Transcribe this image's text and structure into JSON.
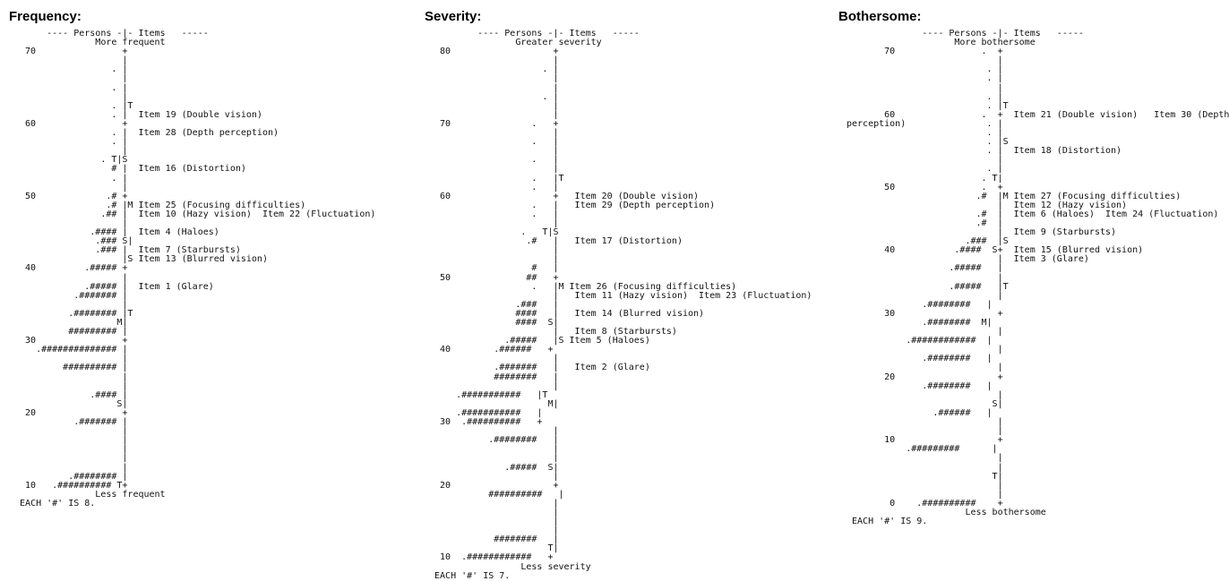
{
  "panels": [
    {
      "title": "Frequency:",
      "map_lines": [
        "      ---- Persons -|- Items   -----",
        "               More frequent",
        "  70                +",
        "                    |",
        "                  . |",
        "                    |",
        "                  . |",
        "                    |",
        "                  . |T",
        "                  . |  Item 19 (Double vision)",
        "  60                +",
        "                  . |  Item 28 (Depth perception)",
        "                  . |",
        "                    |",
        "                . T|S",
        "                  # |  Item 16 (Distortion)",
        "                  . |",
        "                    |",
        "  50             .# +",
        "                 .# |M Item 25 (Focusing difficulties)",
        "                .## |  Item 10 (Hazy vision)  Item 22 (Fluctuation)",
        "                    |",
        "              .#### |  Item 4 (Haloes)",
        "               .### S|",
        "               .### |  Item 7 (Starbursts)",
        "                    |S Item 13 (Blurred vision)",
        "  40         .##### +",
        "                    |",
        "             .##### |  Item 1 (Glare)",
        "           .####### |",
        "                    |",
        "          .######## |T",
        "                   M|",
        "          ######### |",
        "  30                +",
        "    .############## |",
        "                    |",
        "         ########## |",
        "                    |",
        "                    |",
        "              .#### |",
        "                   S|",
        "  20                +",
        "           .####### |",
        "                    |",
        "                    |",
        "                    |",
        "                    |",
        "                    |",
        "          .######## |",
        "  10   .########## T+",
        "               Less frequent",
        " EACH '#' IS 8."
      ]
    },
    {
      "title": "Severity:",
      "map_lines": [
        "         ---- Persons -|- Items   -----",
        "                Greater severity",
        "  80                   +",
        "                       |",
        "                     . |",
        "                       |",
        "                       |",
        "                     . |",
        "                       |",
        "                       |",
        "  70               .   +",
        "                       |",
        "                   .   |",
        "                       |",
        "                   .   |",
        "                       |",
        "                   .   |T",
        "                   .   |",
        "  60                   +   Item 20 (Double vision)",
        "                   .   |   Item 29 (Depth perception)",
        "                   .   |",
        "                       |",
        "                 .   T|S",
        "                  .#   |   Item 17 (Distortion)",
        "                       |",
        "                       |",
        "                   #   |",
        "  50              ##   +",
        "                   .   |M Item 26 (Focusing difficulties)",
        "                       |   Item 11 (Hazy vision)  Item 23 (Fluctuation)",
        "                .###   |",
        "                ####   |   Item 14 (Blurred vision)",
        "                ####  S|",
        "                       |   Item 8 (Starbursts)",
        "              .#####   |S Item 5 (Haloes)",
        "  40        .######   +",
        "                       |",
        "            .#######   |   Item 2 (Glare)",
        "            ########   |",
        "                       |",
        "     .###########   |T",
        "                      M|",
        "     .###########   |",
        "  30  .##########   +",
        "                       |",
        "           .########   |",
        "                       |",
        "                       |",
        "              .#####  S|",
        "                       |",
        "  20                   +",
        "           ##########   |",
        "                       |",
        "                       |",
        "                       |",
        "                       |",
        "            ########   |",
        "                      T|",
        "  10  .############   +",
        "                 Less severity",
        " EACH '#' IS 7."
      ]
    },
    {
      "title": "Bothersome:",
      "map_lines": [
        "              ---- Persons -|- Items   -----",
        "                    More bothersome",
        "       70                .  +",
        "                            |",
        "                          . |",
        "                          . |",
        "                            |",
        "                          . |",
        "                          . |T",
        "       60                .  +  Item 21 (Double vision)   Item 30 (Depth",
        "perception)               . |",
        "                          . |",
        "                          . |S",
        "                          . |  Item 18 (Distortion)",
        "                            |",
        "                          . |",
        "                         . T|",
        "       50                .  +",
        "                        .#  |M Item 27 (Focusing difficulties)",
        "                            |  Item 12 (Hazy vision)",
        "                        .#  |  Item 6 (Haloes)  Item 24 (Fluctuation)",
        "                        .#  |",
        "                            |  Item 9 (Starbursts)",
        "                      .###  |S",
        "       40           .####  S+  Item 15 (Blurred vision)",
        "                            |  Item 3 (Glare)",
        "                   .#####   |",
        "                            |",
        "                   .#####   |T",
        "                            |",
        "              .########   |",
        "       30                   +",
        "              .########  M|",
        "                            |",
        "           .############  |",
        "                            |",
        "              .########   |",
        "                            |",
        "       20                   +",
        "              .########   |",
        "                            |",
        "                           S|",
        "                .######   |",
        "                            |",
        "                            |",
        "       10                   +",
        "           .#########      |",
        "                            |",
        "                            |",
        "                           T|",
        "                            |",
        "                            |",
        "        0    .##########    +",
        "                      Less bothersome",
        " EACH '#' IS 9."
      ]
    }
  ]
}
